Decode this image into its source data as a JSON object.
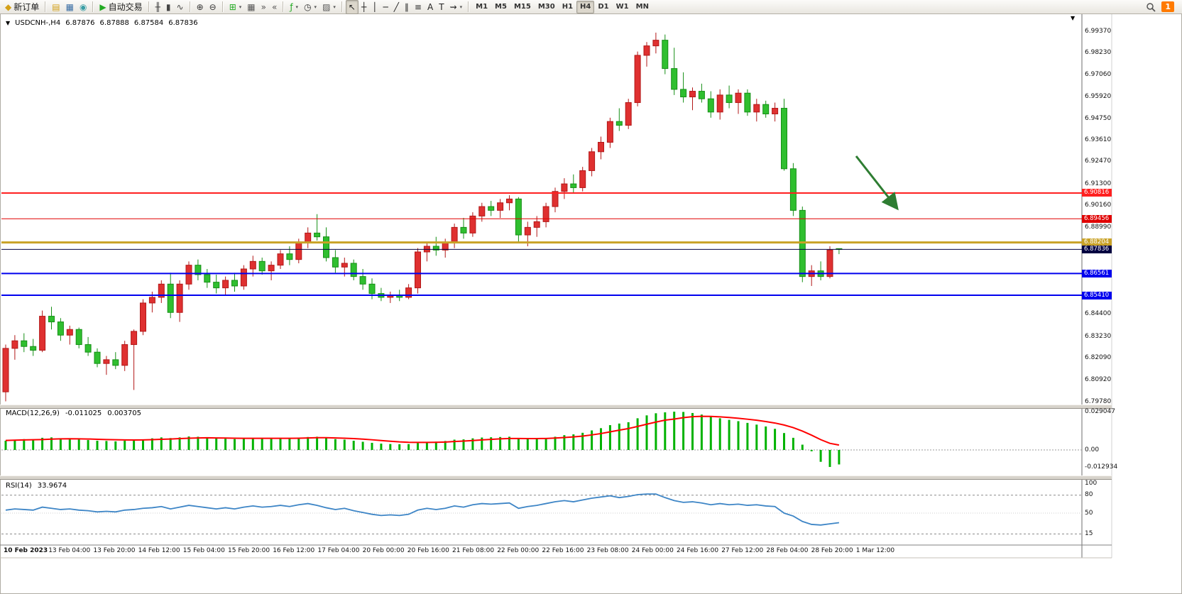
{
  "icons": {
    "symbol_caret": "▼",
    "scroll_marker": "▼",
    "dropdown_caret": "▾"
  },
  "toolbar": {
    "buttons": [
      {
        "name": "new-order",
        "glyph": "◆",
        "glyph_color": "#d4a017",
        "label": "新订单"
      },
      {
        "sep": true
      },
      {
        "name": "market-watch",
        "glyph": "▤",
        "glyph_color": "#d4a017"
      },
      {
        "name": "data-window",
        "glyph": "▦",
        "glyph_color": "#3a6ea5"
      },
      {
        "name": "navigator",
        "glyph": "◉",
        "glyph_color": "#3a9ea5"
      },
      {
        "sep": true
      },
      {
        "name": "autotrading",
        "glyph": "▶",
        "glyph_color": "#22aa22",
        "label": "自动交易"
      },
      {
        "sep": true
      },
      {
        "name": "bar-chart",
        "glyph": "╫",
        "glyph_color": "#444444"
      },
      {
        "name": "candlestick-chart",
        "glyph": "▮",
        "glyph_color": "#444444"
      },
      {
        "name": "line-chart",
        "glyph": "∿",
        "glyph_color": "#444444"
      },
      {
        "sep": true
      },
      {
        "name": "zoom-in",
        "glyph": "⊕",
        "glyph_color": "#333333"
      },
      {
        "name": "zoom-out",
        "glyph": "⊖",
        "glyph_color": "#333333"
      },
      {
        "sep": true
      },
      {
        "name": "new-chart",
        "glyph": "⊞",
        "glyph_color": "#22aa22",
        "dropdown": true
      },
      {
        "name": "tile-windows",
        "glyph": "▦",
        "glyph_color": "#555555"
      },
      {
        "name": "auto-scroll",
        "glyph": "»",
        "glyph_color": "#555555"
      },
      {
        "name": "chart-shift",
        "glyph": "«",
        "glyph_color": "#555555"
      },
      {
        "sep": true
      },
      {
        "name": "indicators",
        "glyph": "ƒ",
        "glyph_color": "#22aa22",
        "dropdown": true
      },
      {
        "name": "periods",
        "glyph": "◷",
        "glyph_color": "#333333",
        "dropdown": true
      },
      {
        "name": "templates",
        "glyph": "▨",
        "glyph_color": "#555555",
        "dropdown": true
      },
      {
        "sep": true
      },
      {
        "name": "cursor",
        "glyph": "↖",
        "glyph_color": "#222222",
        "active": true
      },
      {
        "name": "crosshair",
        "glyph": "┼",
        "glyph_color": "#222222"
      },
      {
        "name": "vertical-line",
        "glyph": "│",
        "glyph_color": "#222222"
      },
      {
        "name": "horizontal-line",
        "glyph": "─",
        "glyph_color": "#222222"
      },
      {
        "name": "trendline",
        "glyph": "╱",
        "glyph_color": "#222222"
      },
      {
        "name": "channel",
        "glyph": "∥",
        "glyph_color": "#222222"
      },
      {
        "name": "fibonacci",
        "glyph": "≡",
        "glyph_color": "#222222"
      },
      {
        "name": "text",
        "glyph": "A",
        "glyph_color": "#222222"
      },
      {
        "name": "text-label",
        "glyph": "T",
        "glyph_color": "#222222"
      },
      {
        "name": "arrows",
        "glyph": "⇝",
        "glyph_color": "#222222",
        "dropdown": true
      },
      {
        "sep": true
      }
    ],
    "timeframes": {
      "items": [
        "M1",
        "M5",
        "M15",
        "M30",
        "H1",
        "H4",
        "D1",
        "W1",
        "MN"
      ],
      "active": "H4"
    },
    "right": {
      "badge": "1"
    }
  },
  "chart": {
    "header": {
      "symbol": "USDCNH-,H4",
      "open": "6.87876",
      "high": "6.87888",
      "low": "6.87584",
      "close": "6.87836"
    },
    "price_axis": [
      "6.99370",
      "6.98230",
      "6.97060",
      "6.95920",
      "6.94750",
      "6.93610",
      "6.92470",
      "6.91300",
      "6.90160",
      "6.88990",
      "6.84400",
      "6.83230",
      "6.82090",
      "6.80920",
      "6.79780"
    ],
    "hlines": [
      {
        "price": 6.90816,
        "label": "6.90816",
        "color": "#FF2020",
        "width": 2
      },
      {
        "price": 6.89456,
        "label": "6.89456",
        "color": "#E00000",
        "width": 1
      },
      {
        "price": 6.88204,
        "label": "6.88204",
        "color": "#C9A227",
        "width": 3
      },
      {
        "price": 6.87836,
        "label": "6.87836",
        "color": "#000040",
        "width": 1,
        "current": true
      },
      {
        "price": 6.86561,
        "label": "6.86561",
        "color": "#0000EE",
        "width": 2
      },
      {
        "price": 6.8541,
        "label": "6.85410",
        "color": "#0000EE",
        "width": 2
      }
    ],
    "time_axis": [
      "10 Feb 2023",
      "13 Feb 04:00",
      "13 Feb 20:00",
      "14 Feb 12:00",
      "15 Feb 04:00",
      "15 Feb 20:00",
      "16 Feb 12:00",
      "17 Feb 04:00",
      "20 Feb 00:00",
      "20 Feb 16:00",
      "21 Feb 08:00",
      "22 Feb 00:00",
      "22 Feb 16:00",
      "23 Feb 08:00",
      "24 Feb 00:00",
      "24 Feb 16:00",
      "27 Feb 12:00",
      "28 Feb 04:00",
      "28 Feb 20:00",
      "1 Mar 12:00"
    ],
    "macd": {
      "title": "MACD(12,26,9)",
      "main": "-0.011025",
      "signal": "0.003705",
      "scale": [
        {
          "label": "0.029047",
          "value": 0.029047
        },
        {
          "label": "0.00",
          "value": 0
        },
        {
          "label": "-0.012934",
          "value": -0.012934
        }
      ]
    },
    "rsi": {
      "title": "RSI(14)",
      "value": "33.9674",
      "scale": [
        {
          "label": "100",
          "value": 100
        },
        {
          "label": "80",
          "value": 80
        },
        {
          "label": "50",
          "value": 50
        },
        {
          "label": "15",
          "value": 15
        }
      ],
      "levels": [
        80,
        15
      ]
    }
  },
  "chart_data": {
    "type": "candlestick+indicators",
    "symbol": "USDCNH",
    "timeframe": "H4",
    "price_range_visible": [
      6.7978,
      6.9937
    ],
    "colors": {
      "bull": "#DF3030",
      "bull_border": "#B21818",
      "bear": "#2FBF2F",
      "bear_border": "#168F16",
      "macd_hist": "#00B200",
      "macd_signal": "#FF0000",
      "rsi_line": "#3D85C6"
    },
    "candles_ohlc": [
      [
        6.803,
        6.828,
        6.798,
        6.826
      ],
      [
        6.826,
        6.833,
        6.82,
        6.83
      ],
      [
        6.83,
        6.834,
        6.824,
        6.827
      ],
      [
        6.827,
        6.831,
        6.822,
        6.825
      ],
      [
        6.825,
        6.846,
        6.824,
        6.843
      ],
      [
        6.843,
        6.848,
        6.836,
        6.84
      ],
      [
        6.84,
        6.842,
        6.83,
        6.833
      ],
      [
        6.833,
        6.838,
        6.828,
        6.836
      ],
      [
        6.836,
        6.837,
        6.826,
        6.828
      ],
      [
        6.828,
        6.832,
        6.822,
        6.824
      ],
      [
        6.824,
        6.826,
        6.816,
        6.818
      ],
      [
        6.818,
        6.822,
        6.812,
        6.82
      ],
      [
        6.82,
        6.824,
        6.815,
        6.817
      ],
      [
        6.817,
        6.83,
        6.814,
        6.828
      ],
      [
        6.828,
        6.836,
        6.804,
        6.835
      ],
      [
        6.835,
        6.852,
        6.833,
        6.85
      ],
      [
        6.85,
        6.856,
        6.845,
        6.853
      ],
      [
        6.853,
        6.862,
        6.85,
        6.86
      ],
      [
        6.86,
        6.866,
        6.842,
        6.845
      ],
      [
        6.845,
        6.862,
        6.84,
        6.86
      ],
      [
        6.86,
        6.872,
        6.857,
        6.87
      ],
      [
        6.87,
        6.873,
        6.862,
        6.865
      ],
      [
        6.865,
        6.868,
        6.858,
        6.861
      ],
      [
        6.861,
        6.865,
        6.855,
        6.858
      ],
      [
        6.858,
        6.864,
        6.854,
        6.862
      ],
      [
        6.862,
        6.866,
        6.856,
        6.859
      ],
      [
        6.859,
        6.87,
        6.857,
        6.868
      ],
      [
        6.868,
        6.875,
        6.864,
        6.872
      ],
      [
        6.872,
        6.874,
        6.865,
        6.867
      ],
      [
        6.867,
        6.872,
        6.862,
        6.87
      ],
      [
        6.87,
        6.878,
        6.868,
        6.876
      ],
      [
        6.876,
        6.88,
        6.87,
        6.873
      ],
      [
        6.873,
        6.884,
        6.871,
        6.882
      ],
      [
        6.882,
        6.89,
        6.879,
        6.887
      ],
      [
        6.887,
        6.897,
        6.883,
        6.885
      ],
      [
        6.885,
        6.89,
        6.872,
        6.874
      ],
      [
        6.874,
        6.878,
        6.866,
        6.869
      ],
      [
        6.869,
        6.874,
        6.864,
        6.871
      ],
      [
        6.871,
        6.873,
        6.862,
        6.864
      ],
      [
        6.864,
        6.868,
        6.857,
        6.86
      ],
      [
        6.86,
        6.863,
        6.852,
        6.855
      ],
      [
        6.855,
        6.858,
        6.851,
        6.853
      ],
      [
        6.853,
        6.856,
        6.85,
        6.854
      ],
      [
        6.854,
        6.857,
        6.851,
        6.853
      ],
      [
        6.853,
        6.86,
        6.852,
        6.858
      ],
      [
        6.858,
        6.879,
        6.855,
        6.877
      ],
      [
        6.877,
        6.882,
        6.872,
        6.88
      ],
      [
        6.88,
        6.885,
        6.875,
        6.878
      ],
      [
        6.878,
        6.884,
        6.874,
        6.882
      ],
      [
        6.882,
        6.892,
        6.879,
        6.89
      ],
      [
        6.89,
        6.895,
        6.884,
        6.887
      ],
      [
        6.887,
        6.898,
        6.885,
        6.896
      ],
      [
        6.896,
        6.903,
        6.893,
        6.901
      ],
      [
        6.901,
        6.904,
        6.896,
        6.899
      ],
      [
        6.899,
        6.905,
        6.895,
        6.903
      ],
      [
        6.903,
        6.907,
        6.899,
        6.905
      ],
      [
        6.905,
        6.906,
        6.882,
        6.886
      ],
      [
        6.886,
        6.893,
        6.88,
        6.89
      ],
      [
        6.89,
        6.896,
        6.885,
        6.893
      ],
      [
        6.893,
        6.903,
        6.89,
        6.901
      ],
      [
        6.901,
        6.911,
        6.898,
        6.909
      ],
      [
        6.909,
        6.916,
        6.905,
        6.913
      ],
      [
        6.913,
        6.918,
        6.908,
        6.911
      ],
      [
        6.911,
        6.922,
        6.909,
        6.92
      ],
      [
        6.92,
        6.932,
        6.917,
        6.93
      ],
      [
        6.93,
        6.938,
        6.926,
        6.935
      ],
      [
        6.935,
        6.948,
        6.932,
        6.946
      ],
      [
        6.946,
        6.953,
        6.941,
        6.944
      ],
      [
        6.944,
        6.958,
        6.942,
        6.956
      ],
      [
        6.956,
        6.983,
        6.954,
        6.981
      ],
      [
        6.981,
        6.988,
        6.975,
        6.986
      ],
      [
        6.986,
        6.993,
        6.982,
        6.989
      ],
      [
        6.989,
        6.992,
        6.971,
        6.974
      ],
      [
        6.974,
        6.985,
        6.96,
        6.963
      ],
      [
        6.963,
        6.972,
        6.956,
        6.959
      ],
      [
        6.959,
        6.964,
        6.952,
        6.962
      ],
      [
        6.962,
        6.966,
        6.956,
        6.958
      ],
      [
        6.958,
        6.962,
        6.948,
        6.951
      ],
      [
        6.951,
        6.963,
        6.947,
        6.96
      ],
      [
        6.96,
        6.965,
        6.953,
        6.956
      ],
      [
        6.956,
        6.963,
        6.95,
        6.961
      ],
      [
        6.961,
        6.963,
        6.949,
        6.951
      ],
      [
        6.951,
        6.958,
        6.946,
        6.955
      ],
      [
        6.955,
        6.957,
        6.948,
        6.95
      ],
      [
        6.95,
        6.956,
        6.946,
        6.953
      ],
      [
        6.953,
        6.958,
        6.92,
        6.921
      ],
      [
        6.921,
        6.924,
        6.896,
        6.899
      ],
      [
        6.899,
        6.901,
        6.861,
        6.864
      ],
      [
        6.864,
        6.87,
        6.859,
        6.867
      ],
      [
        6.867,
        6.872,
        6.862,
        6.864
      ],
      [
        6.864,
        6.88,
        6.863,
        6.878
      ],
      [
        6.87876,
        6.87888,
        6.87584,
        6.87836
      ]
    ],
    "macd_histogram": [
      0.007,
      0.0078,
      0.0082,
      0.008,
      0.0092,
      0.0095,
      0.0088,
      0.0085,
      0.008,
      0.0075,
      0.007,
      0.0068,
      0.0065,
      0.007,
      0.0072,
      0.008,
      0.0088,
      0.0095,
      0.009,
      0.0095,
      0.0102,
      0.01,
      0.0095,
      0.0088,
      0.0085,
      0.0082,
      0.0085,
      0.009,
      0.0088,
      0.0086,
      0.009,
      0.0088,
      0.0092,
      0.0098,
      0.01,
      0.0092,
      0.0082,
      0.0078,
      0.007,
      0.0062,
      0.0054,
      0.0048,
      0.0045,
      0.0043,
      0.0044,
      0.0052,
      0.006,
      0.0063,
      0.0068,
      0.0078,
      0.008,
      0.0088,
      0.0094,
      0.0096,
      0.0098,
      0.01,
      0.0088,
      0.0082,
      0.0084,
      0.009,
      0.01,
      0.0112,
      0.0118,
      0.013,
      0.0148,
      0.0165,
      0.0188,
      0.02,
      0.021,
      0.024,
      0.0262,
      0.0278,
      0.0285,
      0.029,
      0.0288,
      0.028,
      0.0268,
      0.0252,
      0.024,
      0.0228,
      0.0218,
      0.0205,
      0.0192,
      0.0178,
      0.016,
      0.0128,
      0.0092,
      0.004,
      -0.001,
      -0.009,
      -0.0129,
      -0.011
    ],
    "macd_signal_line": [
      0.0072,
      0.0074,
      0.0076,
      0.0077,
      0.0079,
      0.0082,
      0.0084,
      0.0085,
      0.0084,
      0.0083,
      0.0081,
      0.0079,
      0.0077,
      0.0076,
      0.0075,
      0.0076,
      0.0078,
      0.0081,
      0.0083,
      0.0086,
      0.0089,
      0.0091,
      0.0092,
      0.0091,
      0.009,
      0.0089,
      0.0088,
      0.0088,
      0.0088,
      0.0088,
      0.0088,
      0.0088,
      0.0089,
      0.0091,
      0.0093,
      0.0093,
      0.0091,
      0.0089,
      0.0086,
      0.0082,
      0.0077,
      0.0071,
      0.0066,
      0.0061,
      0.0058,
      0.0057,
      0.0057,
      0.0058,
      0.006,
      0.0064,
      0.0067,
      0.0071,
      0.0076,
      0.008,
      0.0084,
      0.0087,
      0.0087,
      0.0086,
      0.0086,
      0.0087,
      0.009,
      0.0094,
      0.0099,
      0.0105,
      0.0114,
      0.0124,
      0.0137,
      0.015,
      0.0162,
      0.0178,
      0.0195,
      0.0211,
      0.0226,
      0.0234,
      0.0245,
      0.0252,
      0.0255,
      0.0254,
      0.0251,
      0.0246,
      0.024,
      0.0233,
      0.0225,
      0.0215,
      0.0204,
      0.0189,
      0.0169,
      0.0143,
      0.0112,
      0.0078,
      0.005,
      0.0037
    ],
    "rsi": [
      55,
      57,
      56,
      55,
      60,
      58,
      56,
      57,
      55,
      54,
      52,
      53,
      52,
      55,
      56,
      58,
      59,
      61,
      57,
      60,
      63,
      61,
      59,
      57,
      59,
      57,
      60,
      62,
      60,
      61,
      63,
      61,
      64,
      66,
      63,
      59,
      56,
      58,
      54,
      51,
      48,
      46,
      47,
      46,
      48,
      55,
      58,
      56,
      58,
      62,
      60,
      64,
      66,
      65,
      66,
      67,
      58,
      61,
      63,
      66,
      69,
      71,
      69,
      72,
      75,
      77,
      79,
      76,
      78,
      81,
      82,
      82,
      76,
      71,
      68,
      69,
      67,
      64,
      66,
      64,
      65,
      63,
      64,
      62,
      61,
      50,
      45,
      36,
      31,
      30,
      32,
      33.9674
    ],
    "annotations": [
      {
        "type": "arrow",
        "color": "#2E7D32"
      }
    ]
  }
}
